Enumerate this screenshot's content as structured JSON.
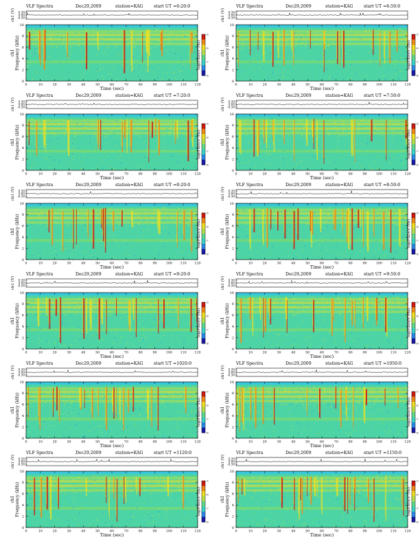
{
  "common": {
    "program": "VLF Spectra",
    "date": "Dec29,2009",
    "station": "station=KAG",
    "start_prefix": "start UT =",
    "ch_label": "ch1 (V)",
    "ylabel_ch": "ch1",
    "ylabel_freq": "Frequency (kHz)",
    "xlabel": "Time (sec)",
    "cbar_label": "log(PSD)(V²/Hz)"
  },
  "colormap": [
    "#1a1aa8",
    "#2a8ae6",
    "#3ad4c8",
    "#5fd98a",
    "#b4e04a",
    "#f0e020",
    "#f08a18",
    "#d01a10"
  ],
  "chart_data": [
    {
      "type": "heatmap",
      "start_ut": "6:20:0",
      "xlim": [
        0,
        120
      ],
      "ylim_freq": [
        0,
        10
      ],
      "ylim_ch": [
        -0.3,
        0.3
      ],
      "x_ticks": [
        0,
        10,
        20,
        30,
        40,
        50,
        60,
        70,
        80,
        90,
        100,
        110,
        120
      ],
      "y_ticks_freq": [
        0,
        2,
        4,
        6,
        8,
        10
      ],
      "y_ticks_ch": [
        "0.30",
        "0.00",
        "-0.30"
      ],
      "cbar_ticks": [
        "-5",
        "-6",
        "-7",
        "-8"
      ]
    },
    {
      "type": "heatmap",
      "start_ut": "6:50:0",
      "xlim": [
        0,
        120
      ],
      "ylim_freq": [
        0,
        10
      ],
      "ylim_ch": [
        -0.3,
        0.3
      ],
      "x_ticks": [
        0,
        10,
        20,
        30,
        40,
        50,
        60,
        70,
        80,
        90,
        100,
        110,
        120
      ],
      "y_ticks_freq": [
        0,
        2,
        4,
        6,
        8,
        10
      ],
      "y_ticks_ch": [
        "0.30",
        "0.00",
        "-0.30"
      ],
      "cbar_ticks": [
        "-5",
        "-6",
        "-7",
        "-8"
      ]
    },
    {
      "type": "heatmap",
      "start_ut": "7:20:0",
      "xlim": [
        0,
        120
      ],
      "ylim_freq": [
        0,
        10
      ],
      "ylim_ch": [
        -0.3,
        0.3
      ],
      "x_ticks": [
        0,
        10,
        20,
        30,
        40,
        50,
        60,
        70,
        80,
        90,
        100,
        110,
        120
      ],
      "y_ticks_freq": [
        0,
        2,
        4,
        6,
        8,
        10
      ],
      "y_ticks_ch": [
        "0.30",
        "0.00",
        "-0.30"
      ],
      "cbar_ticks": [
        "-5",
        "-6",
        "-7",
        "-8"
      ]
    },
    {
      "type": "heatmap",
      "start_ut": "7:50:0",
      "xlim": [
        0,
        120
      ],
      "ylim_freq": [
        0,
        10
      ],
      "ylim_ch": [
        -0.3,
        0.3
      ],
      "x_ticks": [
        0,
        10,
        20,
        30,
        40,
        50,
        60,
        70,
        80,
        90,
        100,
        110,
        120
      ],
      "y_ticks_freq": [
        0,
        2,
        4,
        6,
        8,
        10
      ],
      "y_ticks_ch": [
        "0.30",
        "0.00",
        "-0.30"
      ],
      "cbar_ticks": [
        "-5",
        "-6",
        "-7",
        "-8"
      ]
    },
    {
      "type": "heatmap",
      "start_ut": "8:20:0",
      "xlim": [
        0,
        120
      ],
      "ylim_freq": [
        0,
        10
      ],
      "ylim_ch": [
        -0.3,
        0.3
      ],
      "x_ticks": [
        0,
        10,
        20,
        30,
        40,
        50,
        60,
        70,
        80,
        90,
        100,
        110,
        120
      ],
      "y_ticks_freq": [
        0,
        2,
        4,
        6,
        8,
        10
      ],
      "y_ticks_ch": [
        "0.30",
        "0.00",
        "-0.30"
      ],
      "cbar_ticks": [
        "-5",
        "-6",
        "-7",
        "-8"
      ]
    },
    {
      "type": "heatmap",
      "start_ut": "8:50:0",
      "xlim": [
        0,
        120
      ],
      "ylim_freq": [
        0,
        10
      ],
      "ylim_ch": [
        -0.3,
        0.3
      ],
      "x_ticks": [
        0,
        10,
        20,
        30,
        40,
        50,
        60,
        70,
        80,
        90,
        100,
        110,
        120
      ],
      "y_ticks_freq": [
        0,
        2,
        4,
        6,
        8,
        10
      ],
      "y_ticks_ch": [
        "0.30",
        "0.00",
        "-0.30"
      ],
      "cbar_ticks": [
        "-5",
        "-6",
        "-7",
        "-8"
      ]
    },
    {
      "type": "heatmap",
      "start_ut": "9:20:0",
      "xlim": [
        0,
        120
      ],
      "ylim_freq": [
        0,
        10
      ],
      "ylim_ch": [
        -0.3,
        0.3
      ],
      "x_ticks": [
        0,
        10,
        20,
        30,
        40,
        50,
        60,
        70,
        80,
        90,
        100,
        110,
        120
      ],
      "y_ticks_freq": [
        0,
        2,
        4,
        6,
        8,
        10
      ],
      "y_ticks_ch": [
        "0.30",
        "0.00",
        "-0.30"
      ],
      "cbar_ticks": [
        "-5",
        "-6",
        "-7",
        "-8"
      ]
    },
    {
      "type": "heatmap",
      "start_ut": "9:50:0",
      "xlim": [
        0,
        120
      ],
      "ylim_freq": [
        0,
        10
      ],
      "ylim_ch": [
        -0.3,
        0.3
      ],
      "x_ticks": [
        0,
        10,
        20,
        30,
        40,
        50,
        60,
        70,
        80,
        90,
        100,
        110,
        120
      ],
      "y_ticks_freq": [
        0,
        2,
        4,
        6,
        8,
        10
      ],
      "y_ticks_ch": [
        "0.30",
        "0.00",
        "-0.30"
      ],
      "cbar_ticks": [
        "-5",
        "-6",
        "-7",
        "-8"
      ]
    },
    {
      "type": "heatmap",
      "start_ut": "1020:0",
      "xlim": [
        0,
        120
      ],
      "ylim_freq": [
        0,
        10
      ],
      "ylim_ch": [
        -0.3,
        0.3
      ],
      "x_ticks": [
        0,
        10,
        20,
        30,
        40,
        50,
        60,
        70,
        80,
        90,
        100,
        110,
        120
      ],
      "y_ticks_freq": [
        0,
        2,
        4,
        6,
        8,
        10
      ],
      "y_ticks_ch": [
        "0.30",
        "0.00",
        "-0.30"
      ],
      "cbar_ticks": [
        "-5",
        "-6",
        "-7",
        "-8"
      ]
    },
    {
      "type": "heatmap",
      "start_ut": "1050:0",
      "xlim": [
        0,
        120
      ],
      "ylim_freq": [
        0,
        10
      ],
      "ylim_ch": [
        -0.3,
        0.3
      ],
      "x_ticks": [
        0,
        10,
        20,
        30,
        40,
        50,
        60,
        70,
        80,
        90,
        100,
        110,
        120
      ],
      "y_ticks_freq": [
        0,
        2,
        4,
        6,
        8,
        10
      ],
      "y_ticks_ch": [
        "0.30",
        "0.00",
        "-0.30"
      ],
      "cbar_ticks": [
        "-5",
        "-6",
        "-7",
        "-8"
      ]
    },
    {
      "type": "heatmap",
      "start_ut": "1120:0",
      "xlim": [
        0,
        120
      ],
      "ylim_freq": [
        0,
        10
      ],
      "ylim_ch": [
        -0.3,
        0.3
      ],
      "x_ticks": [
        0,
        10,
        20,
        30,
        40,
        50,
        60,
        70,
        80,
        90,
        100,
        110,
        120
      ],
      "y_ticks_freq": [
        0,
        2,
        4,
        6,
        8,
        10
      ],
      "y_ticks_ch": [
        "0.30",
        "0.00",
        "-0.30"
      ],
      "cbar_ticks": [
        "-5",
        "-6",
        "-7",
        "-8"
      ]
    },
    {
      "type": "heatmap",
      "start_ut": "1150:0",
      "xlim": [
        0,
        120
      ],
      "ylim_freq": [
        0,
        10
      ],
      "ylim_ch": [
        -0.3,
        0.3
      ],
      "x_ticks": [
        0,
        10,
        20,
        30,
        40,
        50,
        60,
        70,
        80,
        90,
        100,
        110,
        120
      ],
      "y_ticks_freq": [
        0,
        2,
        4,
        6,
        8,
        10
      ],
      "y_ticks_ch": [
        "0.30",
        "0.00",
        "-0.30"
      ],
      "cbar_ticks": [
        "-5",
        "-6",
        "-7",
        "-8"
      ]
    }
  ]
}
